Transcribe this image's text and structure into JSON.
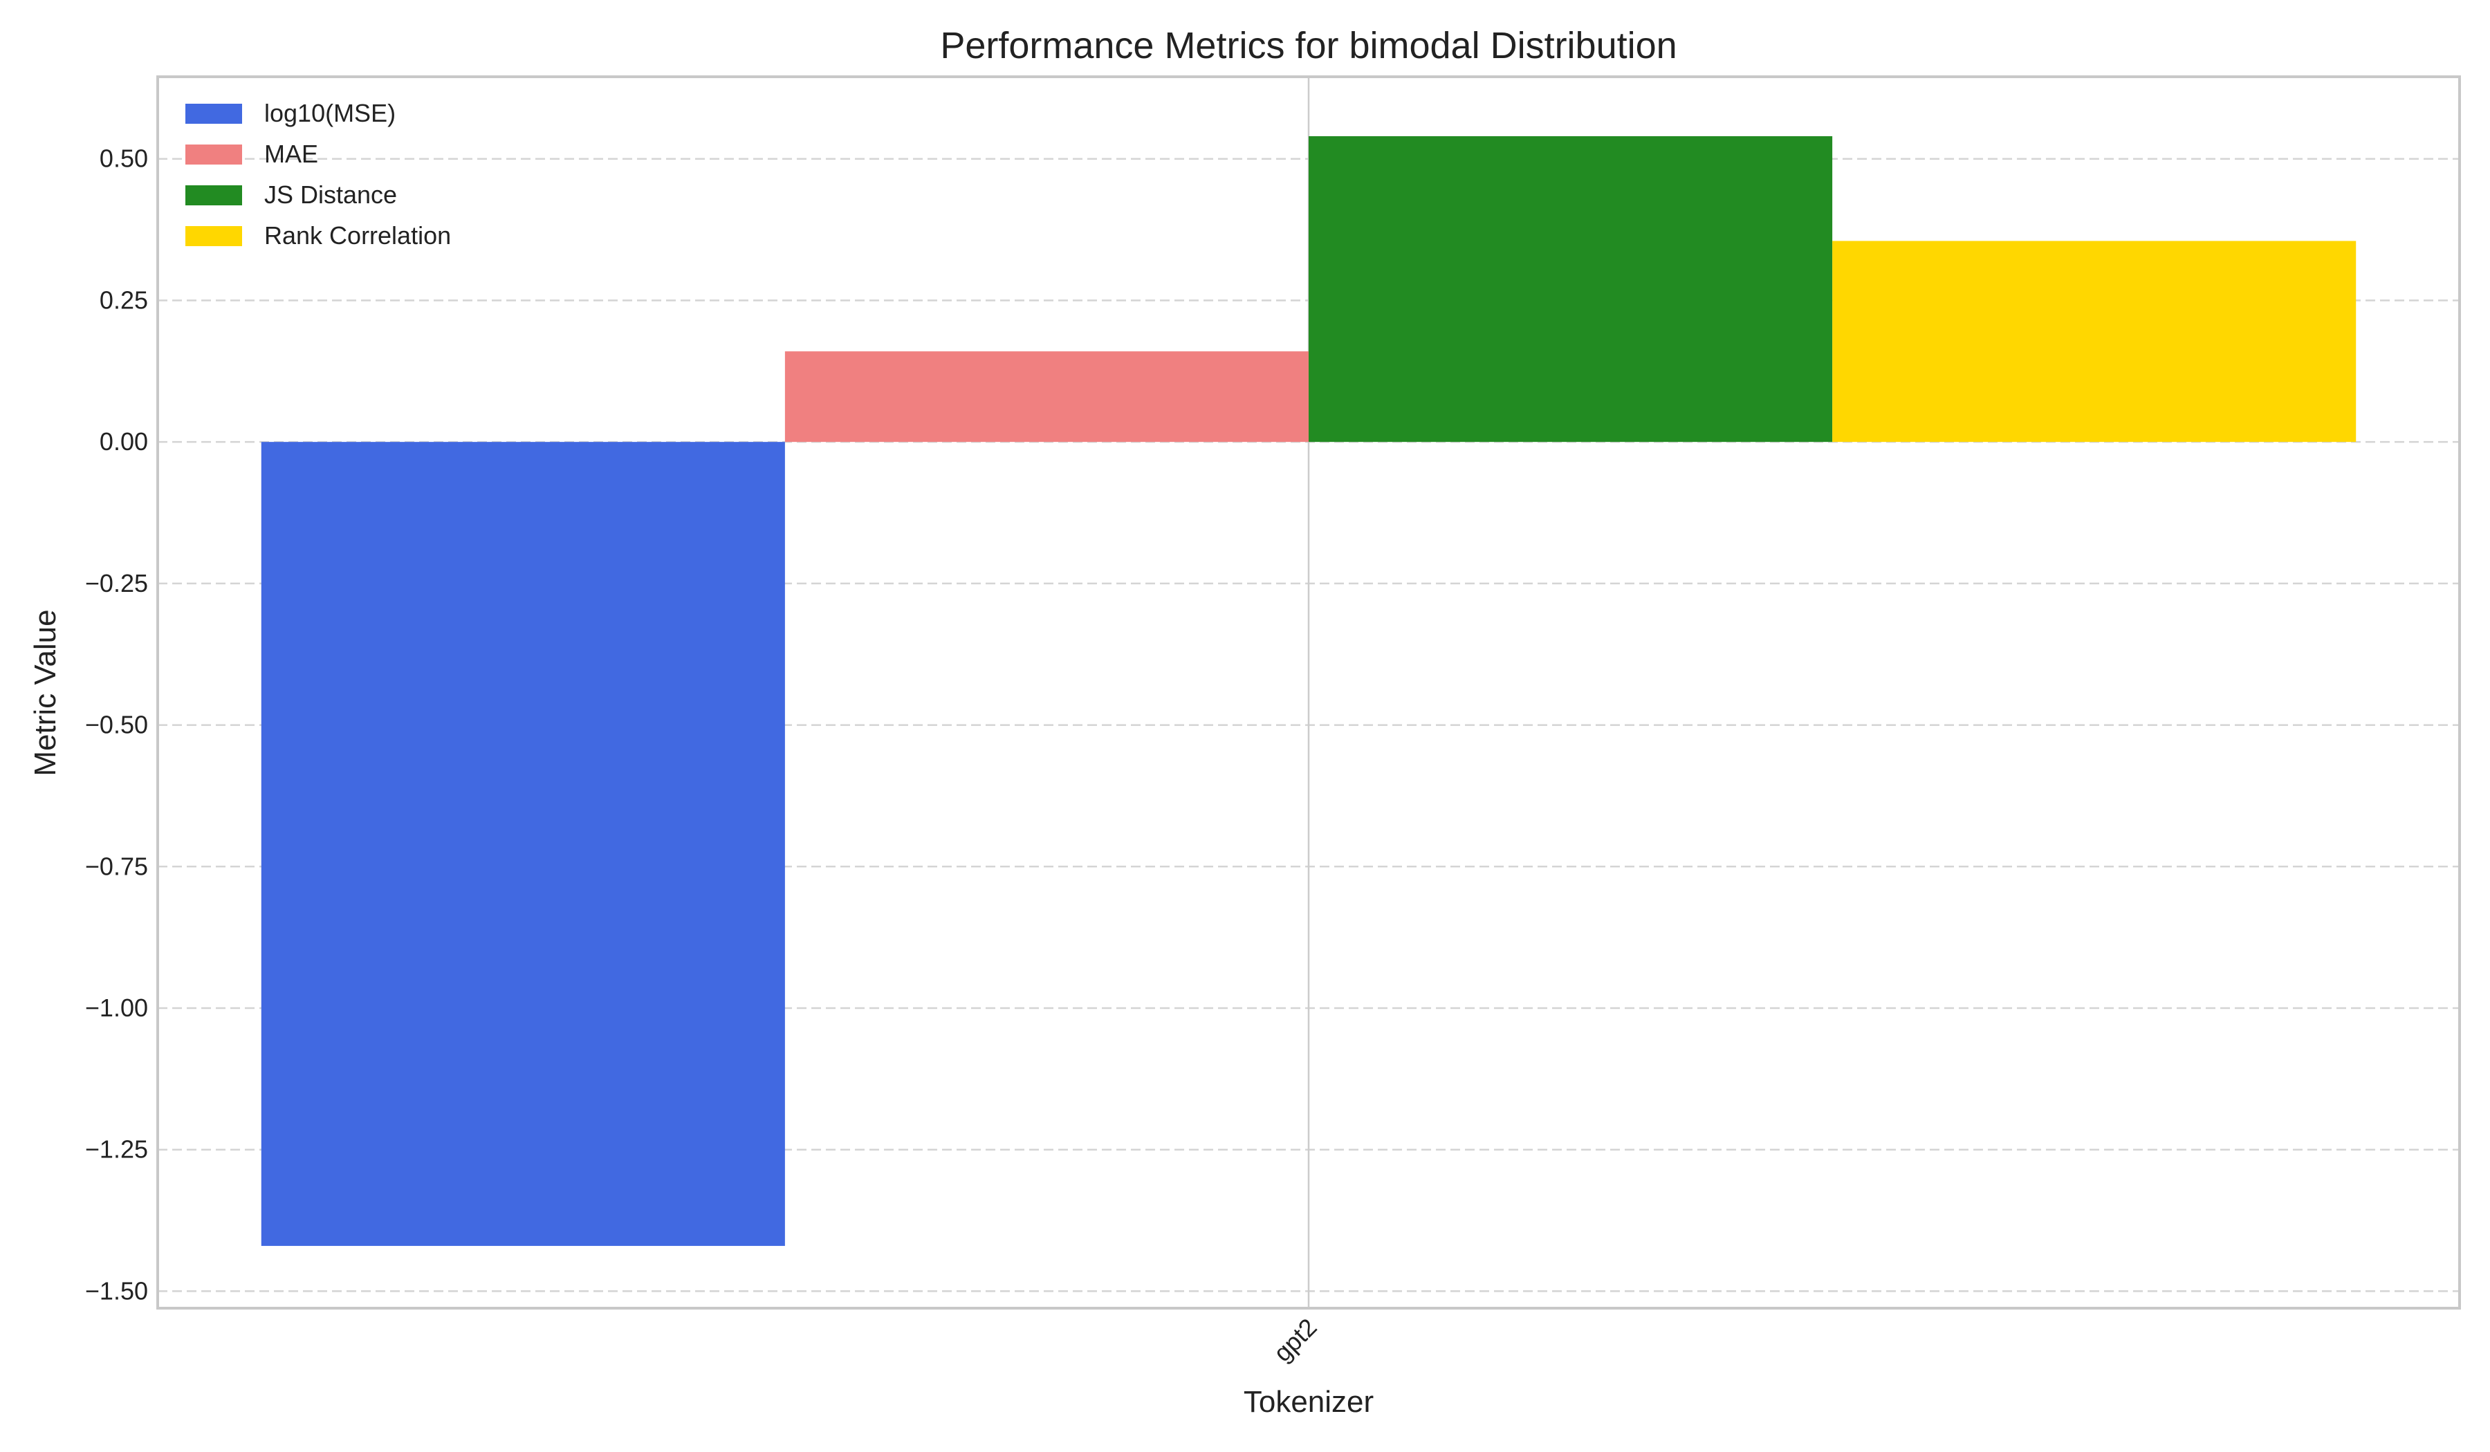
{
  "chart_data": {
    "type": "bar",
    "title": "Performance Metrics for bimodal Distribution",
    "xlabel": "Tokenizer",
    "ylabel": "Metric Value",
    "categories": [
      "gpt2"
    ],
    "ylim": [
      -1.53,
      0.645
    ],
    "yticks": [
      -1.5,
      -1.25,
      -1.0,
      -0.75,
      -0.5,
      -0.25,
      0.0,
      0.25,
      0.5
    ],
    "ytick_labels": [
      "−1.50",
      "−1.25",
      "−1.00",
      "−0.75",
      "−0.50",
      "−0.25",
      "0.00",
      "0.25",
      "0.50"
    ],
    "grid": true,
    "legend_position": "top-left",
    "series": [
      {
        "name": "log10(MSE)",
        "values": [
          -1.42
        ],
        "color": "#4169e1"
      },
      {
        "name": "MAE",
        "values": [
          0.16
        ],
        "color": "#f08080"
      },
      {
        "name": "JS Distance",
        "values": [
          0.54
        ],
        "color": "#228b22"
      },
      {
        "name": "Rank Correlation",
        "values": [
          0.355
        ],
        "color": "#ffd700"
      }
    ]
  }
}
